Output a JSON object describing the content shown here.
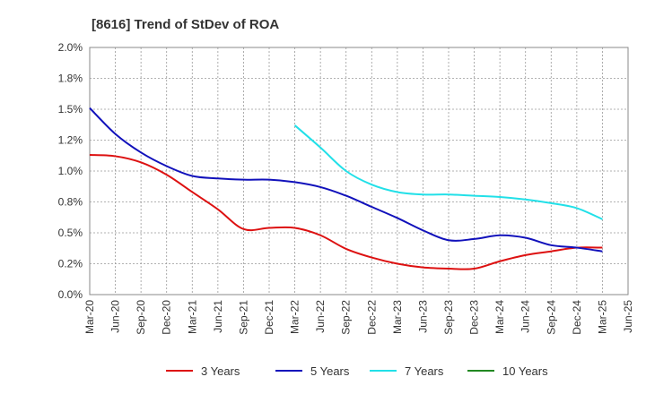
{
  "chart_data": {
    "type": "line",
    "title": "[8616]  Trend of StDev of ROA",
    "xlabel": "",
    "ylabel": "",
    "categories": [
      "Mar-20",
      "Jun-20",
      "Sep-20",
      "Dec-20",
      "Mar-21",
      "Jun-21",
      "Sep-21",
      "Dec-21",
      "Mar-22",
      "Jun-22",
      "Sep-22",
      "Dec-22",
      "Mar-23",
      "Jun-23",
      "Sep-23",
      "Dec-23",
      "Mar-24",
      "Jun-24",
      "Sep-24",
      "Dec-24",
      "Mar-25",
      "Jun-25"
    ],
    "y_ticks": [
      "0.0%",
      "0.2%",
      "0.5%",
      "0.8%",
      "1.0%",
      "1.2%",
      "1.5%",
      "1.8%",
      "2.0%"
    ],
    "ylim": [
      0,
      2.0
    ],
    "grid": true,
    "legend_position": "bottom",
    "series": [
      {
        "name": "3 Years",
        "color": "#dd1111",
        "values": [
          1.13,
          1.12,
          1.07,
          0.97,
          0.83,
          0.69,
          0.53,
          0.54,
          0.54,
          0.48,
          0.37,
          0.3,
          0.25,
          0.22,
          0.21,
          0.21,
          0.27,
          0.32,
          0.35,
          0.38,
          0.38,
          null
        ]
      },
      {
        "name": "5 Years",
        "color": "#1111bb",
        "values": [
          1.51,
          1.3,
          1.15,
          1.04,
          0.96,
          0.94,
          0.93,
          0.93,
          0.91,
          0.87,
          0.8,
          0.71,
          0.62,
          0.52,
          0.44,
          0.45,
          0.48,
          0.46,
          0.4,
          0.38,
          0.35,
          null
        ]
      },
      {
        "name": "7 Years",
        "color": "#22e0e8",
        "values": [
          null,
          null,
          null,
          null,
          null,
          null,
          null,
          null,
          1.37,
          1.19,
          1.0,
          0.89,
          0.83,
          0.81,
          0.81,
          0.8,
          0.79,
          0.77,
          0.74,
          0.7,
          0.61,
          null
        ]
      },
      {
        "name": "10 Years",
        "color": "#228822",
        "values": [
          null,
          null,
          null,
          null,
          null,
          null,
          null,
          null,
          null,
          null,
          null,
          null,
          null,
          null,
          null,
          null,
          null,
          null,
          null,
          null,
          null,
          null
        ]
      }
    ]
  }
}
